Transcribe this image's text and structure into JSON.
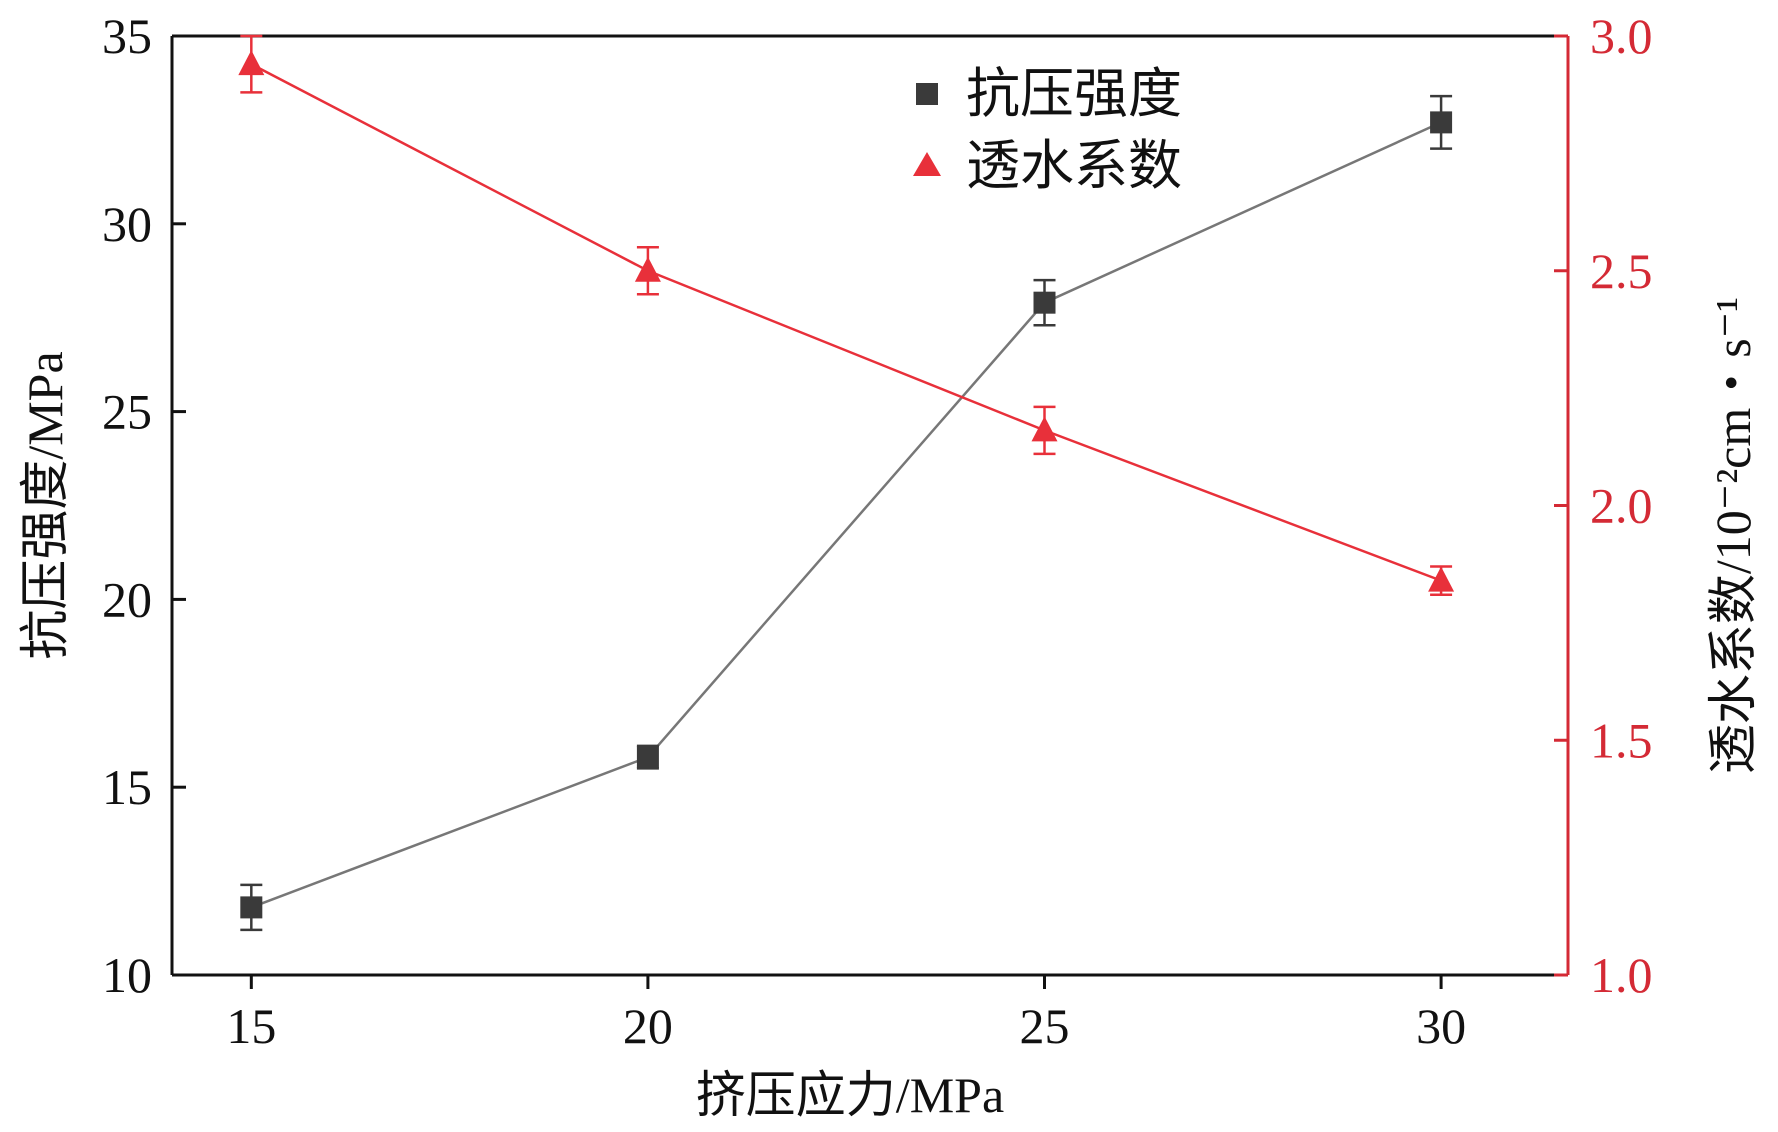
{
  "chart_data": {
    "type": "line",
    "x": [
      15,
      20,
      25,
      30
    ],
    "xlabel": "挤压应力/MPa",
    "xticks": [
      "15",
      "20",
      "25",
      "30"
    ],
    "xlim": [
      14,
      31.6
    ],
    "series": [
      {
        "name": "抗压强度",
        "axis": "left",
        "marker": "square",
        "values": [
          11.8,
          15.8,
          27.9,
          32.7
        ],
        "errors": [
          0.6,
          0.3,
          0.6,
          0.7
        ]
      },
      {
        "name": "透水系数",
        "axis": "right",
        "marker": "triangle",
        "values": [
          2.94,
          2.5,
          2.16,
          1.84
        ],
        "errors": [
          0.06,
          0.05,
          0.05,
          0.03
        ]
      }
    ],
    "ylabel_left": "抗压强度/MPa",
    "ylim_left": [
      10,
      35
    ],
    "yticks_left": [
      "10",
      "15",
      "20",
      "25",
      "30",
      "35"
    ],
    "ylabel_right": "透水系数/10⁻²cm・s⁻¹",
    "ylim_right": [
      1.0,
      3.0
    ],
    "yticks_right": [
      "1.0",
      "1.5",
      "2.0",
      "2.5",
      "3.0"
    ],
    "colors": {
      "left_series": "#3a3a3a",
      "left_line": "#777777",
      "right_series": "#e8303a",
      "right_axis": "#d42a35",
      "axis": "#111111"
    },
    "legend_position": "top-center"
  }
}
